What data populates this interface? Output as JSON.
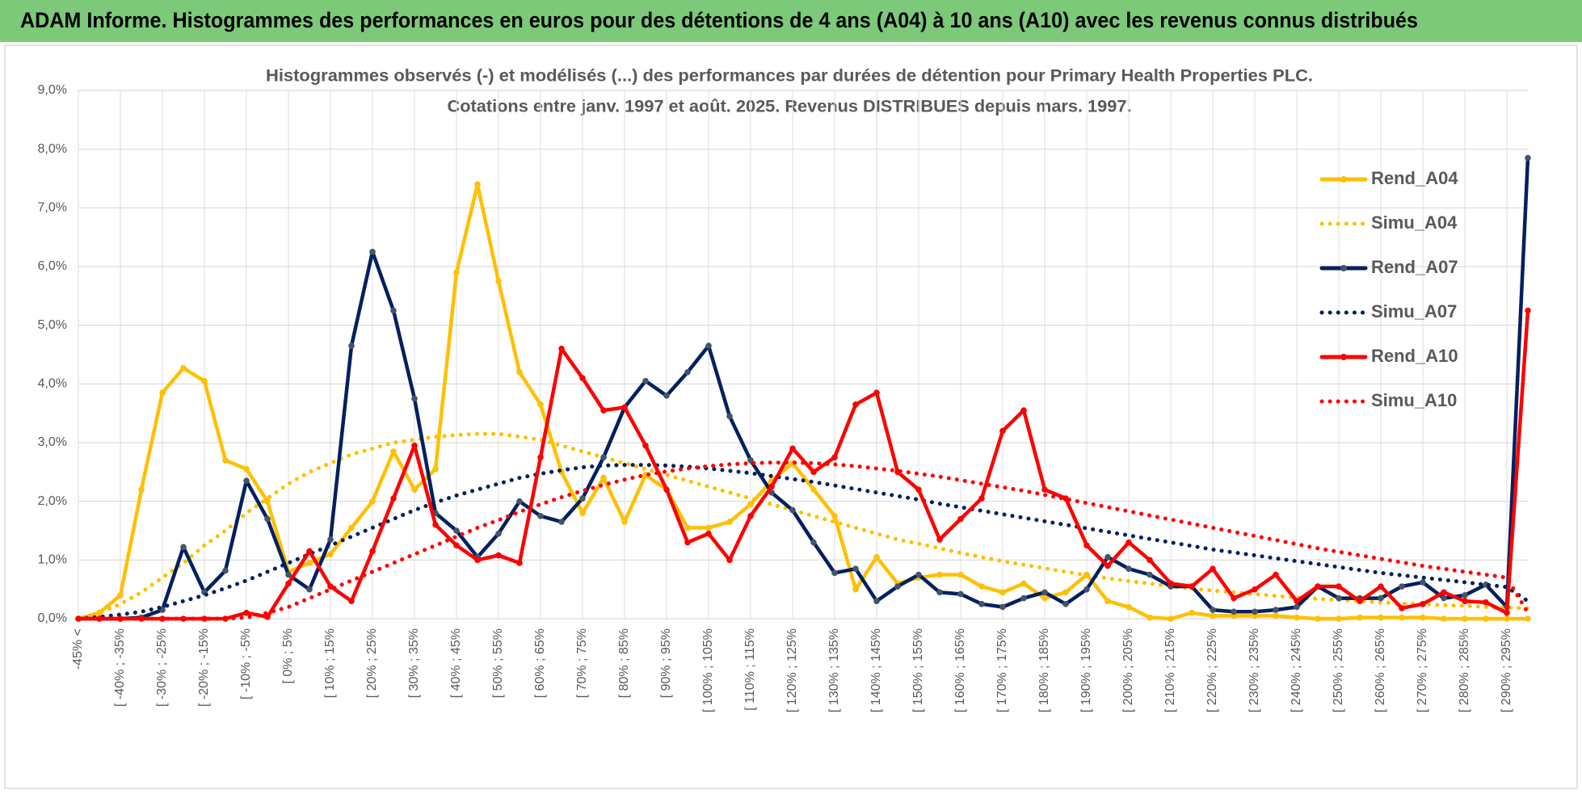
{
  "header": {
    "title": "ADAM Informe. Histogrammes des performances en euros pour des détentions de 4 ans (A04) à 10 ans (A10) avec les revenus connus distribués"
  },
  "chart_data": {
    "type": "line",
    "title_lines": [
      "Histogrammes observés (-) et modélisés (...) des performances par durées de détention pour Primary Health Properties PLC.",
      "Cotations entre janv. 1997 et août. 2025. Revenus DISTRIBUES depuis mars. 1997."
    ],
    "categories": [
      "-45% <",
      null,
      "[ -40% ; -35%",
      null,
      "[ -30% ; -25%",
      null,
      "[ -20% ; -15%",
      null,
      "[ -10% ; -5%",
      null,
      "[ 0% ; 5%",
      null,
      "[ 10% ; 15%",
      null,
      "[ 20% ; 25%",
      null,
      "[ 30% ; 35%",
      null,
      "[ 40% ; 45%",
      null,
      "[ 50% ; 55%",
      null,
      "[ 60% ; 65%",
      null,
      "[ 70% ; 75%",
      null,
      "[ 80% ; 85%",
      null,
      "[ 90% ; 95%",
      null,
      "[ 100% ; 105%",
      null,
      "[ 110% ; 115%",
      null,
      "[ 120% ; 125%",
      null,
      "[ 130% ; 135%",
      null,
      "[ 140% ; 145%",
      null,
      "[ 150% ; 155%",
      null,
      "[ 160% ; 165%",
      null,
      "[ 170% ; 175%",
      null,
      "[ 180% ; 185%",
      null,
      "[ 190% ; 195%",
      null,
      "[ 200% ; 205%",
      null,
      "[ 210% ; 215%",
      null,
      "[ 220% ; 225%",
      null,
      "[ 230% ; 235%",
      null,
      "[ 240% ; 245%",
      null,
      "[ 250% ; 255%",
      null,
      "[ 260% ; 265%",
      null,
      "[ 270% ; 275%",
      null,
      "[ 280% ; 285%",
      null,
      "[ 290% ; 295%",
      null
    ],
    "ylim": [
      0,
      9
    ],
    "yticks": [
      {
        "value": 0,
        "label": "0,0%"
      },
      {
        "value": 1,
        "label": "1,0%"
      },
      {
        "value": 2,
        "label": "2,0%"
      },
      {
        "value": 3,
        "label": "3,0%"
      },
      {
        "value": 4,
        "label": "4,0%"
      },
      {
        "value": 5,
        "label": "5,0%"
      },
      {
        "value": 6,
        "label": "6,0%"
      },
      {
        "value": 7,
        "label": "7,0%"
      },
      {
        "value": 8,
        "label": "8,0%"
      },
      {
        "value": 9,
        "label": "9,0%"
      }
    ],
    "grid": true,
    "legend": "right",
    "series": [
      {
        "name": "Rend_A04",
        "color": "#ffc000",
        "line_style": "solid",
        "markers": true,
        "values": [
          0,
          0.1,
          0.4,
          2.2,
          3.85,
          4.27,
          4.05,
          2.7,
          2.55,
          2.0,
          0.8,
          0.95,
          1.1,
          1.55,
          2.0,
          2.85,
          2.2,
          2.55,
          5.9,
          7.4,
          5.75,
          4.2,
          3.65,
          2.5,
          1.8,
          2.4,
          1.65,
          2.45,
          2.2,
          1.55,
          1.55,
          1.65,
          1.95,
          2.35,
          2.65,
          2.2,
          1.75,
          0.5,
          1.05,
          0.6,
          0.7,
          0.75,
          0.75,
          0.55,
          0.45,
          0.6,
          0.35,
          0.45,
          0.75,
          0.3,
          0.2,
          0.02,
          0,
          0.1,
          0.05,
          0.05,
          0.05,
          0.05,
          0.02,
          0,
          0,
          0.02,
          0.02,
          0.02,
          0.02,
          0,
          0,
          0,
          0,
          0
        ]
      },
      {
        "name": "Simu_A04",
        "color": "#ffc000",
        "line_style": "dotted",
        "markers": false,
        "values": [
          0,
          0.1,
          0.25,
          0.45,
          0.7,
          0.95,
          1.25,
          1.5,
          1.8,
          2.05,
          2.3,
          2.5,
          2.65,
          2.8,
          2.9,
          3.0,
          3.05,
          3.1,
          3.13,
          3.15,
          3.15,
          3.1,
          3.05,
          2.95,
          2.85,
          2.75,
          2.65,
          2.55,
          2.45,
          2.35,
          2.25,
          2.15,
          2.05,
          1.95,
          1.85,
          1.75,
          1.65,
          1.55,
          1.45,
          1.35,
          1.28,
          1.2,
          1.12,
          1.05,
          0.98,
          0.92,
          0.86,
          0.8,
          0.74,
          0.69,
          0.64,
          0.6,
          0.55,
          0.51,
          0.48,
          0.45,
          0.42,
          0.39,
          0.36,
          0.34,
          0.32,
          0.3,
          0.28,
          0.26,
          0.25,
          0.23,
          0.22,
          0.2,
          0.19,
          0.18
        ]
      },
      {
        "name": "Rend_A07",
        "color": "#002060",
        "line_style": "solid",
        "markers": true,
        "marker_color": "#44546a",
        "values": [
          0,
          0,
          0,
          0.02,
          0.15,
          1.22,
          0.45,
          0.82,
          2.35,
          1.7,
          0.75,
          0.5,
          1.35,
          4.65,
          6.25,
          5.25,
          3.75,
          1.8,
          1.5,
          1.05,
          1.45,
          2.0,
          1.75,
          1.65,
          2.05,
          2.75,
          3.6,
          4.05,
          3.8,
          4.2,
          4.65,
          3.45,
          2.7,
          2.15,
          1.85,
          1.3,
          0.78,
          0.85,
          0.3,
          0.55,
          0.75,
          0.45,
          0.42,
          0.25,
          0.2,
          0.35,
          0.45,
          0.25,
          0.5,
          1.05,
          0.85,
          0.75,
          0.55,
          0.55,
          0.15,
          0.12,
          0.12,
          0.15,
          0.2,
          0.55,
          0.35,
          0.35,
          0.35,
          0.55,
          0.62,
          0.35,
          0.4,
          0.58,
          0.2,
          7.85
        ]
      },
      {
        "name": "Simu_A07",
        "color": "#002060",
        "line_style": "dotted",
        "markers": false,
        "values": [
          0,
          0.03,
          0.07,
          0.12,
          0.2,
          0.3,
          0.4,
          0.52,
          0.65,
          0.8,
          0.95,
          1.1,
          1.25,
          1.4,
          1.55,
          1.7,
          1.85,
          1.98,
          2.1,
          2.2,
          2.3,
          2.4,
          2.47,
          2.53,
          2.58,
          2.61,
          2.62,
          2.62,
          2.61,
          2.59,
          2.56,
          2.52,
          2.48,
          2.43,
          2.38,
          2.33,
          2.27,
          2.21,
          2.15,
          2.09,
          2.03,
          1.96,
          1.9,
          1.84,
          1.78,
          1.72,
          1.66,
          1.6,
          1.54,
          1.48,
          1.42,
          1.36,
          1.3,
          1.24,
          1.18,
          1.13,
          1.08,
          1.03,
          0.98,
          0.93,
          0.88,
          0.83,
          0.78,
          0.74,
          0.7,
          0.66,
          0.62,
          0.58,
          0.54,
          0.3
        ]
      },
      {
        "name": "Rend_A10",
        "color": "#ff0000",
        "line_style": "solid",
        "markers": true,
        "values": [
          0,
          0,
          0,
          0,
          0,
          0,
          0,
          0,
          0.1,
          0.03,
          0.6,
          1.15,
          0.55,
          0.3,
          1.15,
          2.05,
          2.95,
          1.6,
          1.25,
          1.0,
          1.08,
          0.95,
          2.75,
          4.6,
          4.1,
          3.55,
          3.6,
          2.95,
          2.2,
          1.3,
          1.45,
          1.0,
          1.75,
          2.25,
          2.9,
          2.5,
          2.75,
          3.65,
          3.85,
          2.5,
          2.2,
          1.35,
          1.7,
          2.05,
          3.2,
          3.55,
          2.2,
          2.05,
          1.25,
          0.9,
          1.3,
          1.0,
          0.6,
          0.55,
          0.85,
          0.35,
          0.5,
          0.75,
          0.3,
          0.55,
          0.55,
          0.3,
          0.55,
          0.18,
          0.25,
          0.45,
          0.3,
          0.28,
          0.1,
          5.25
        ]
      },
      {
        "name": "Simu_A10",
        "color": "#ff0000",
        "line_style": "dotted",
        "markers": false,
        "values": [
          0,
          0,
          0,
          0,
          0,
          0,
          0,
          0,
          0.02,
          0.1,
          0.2,
          0.35,
          0.5,
          0.65,
          0.8,
          0.95,
          1.1,
          1.25,
          1.4,
          1.55,
          1.68,
          1.82,
          1.95,
          2.07,
          2.18,
          2.28,
          2.37,
          2.45,
          2.51,
          2.56,
          2.6,
          2.63,
          2.65,
          2.66,
          2.66,
          2.65,
          2.63,
          2.6,
          2.56,
          2.52,
          2.47,
          2.42,
          2.36,
          2.3,
          2.24,
          2.18,
          2.11,
          2.04,
          1.97,
          1.9,
          1.83,
          1.76,
          1.69,
          1.62,
          1.55,
          1.48,
          1.41,
          1.34,
          1.27,
          1.2,
          1.14,
          1.08,
          1.02,
          0.96,
          0.9,
          0.85,
          0.8,
          0.75,
          0.7,
          0.1
        ]
      }
    ]
  }
}
